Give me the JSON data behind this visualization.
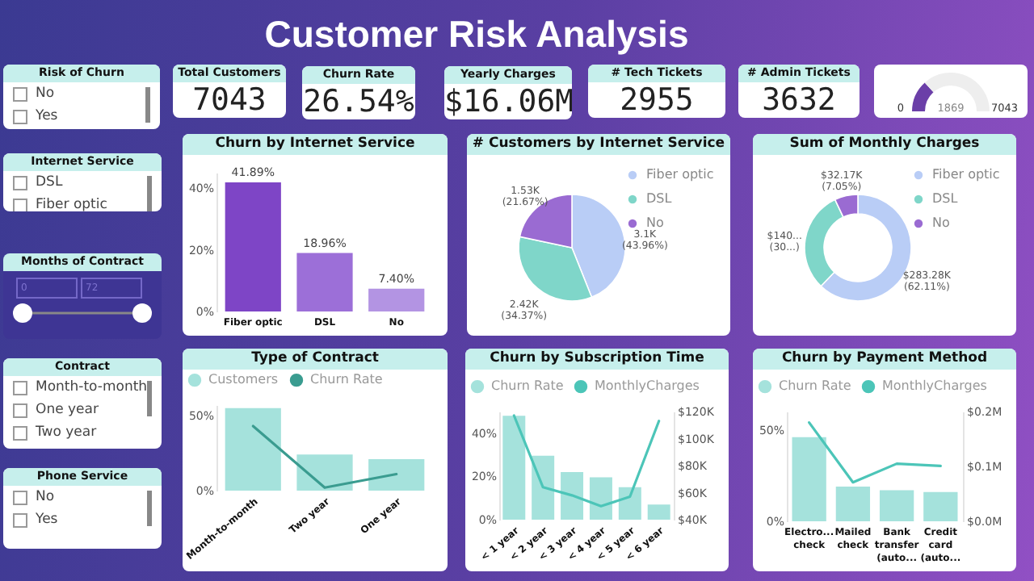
{
  "chart_data": [
    {
      "type": "other",
      "title": "Customer Risk Analysis"
    },
    {
      "type": "other",
      "title": "Risk of Churn",
      "annotations": [
        "No",
        "Yes"
      ]
    },
    {
      "type": "other",
      "title": "Total Customers",
      "annotations": [
        "7043"
      ]
    },
    {
      "type": "other",
      "title": "Churn Rate",
      "annotations": [
        "26.54%"
      ]
    },
    {
      "type": "other",
      "title": "Yearly Charges",
      "annotations": [
        "$16.06M"
      ]
    },
    {
      "type": "other",
      "title": "# Tech Tickets",
      "annotations": [
        "2955"
      ]
    },
    {
      "type": "other",
      "title": "# Admin Tickets",
      "annotations": [
        "3632"
      ]
    },
    {
      "type": "donut",
      "categories": [
        null,
        null
      ],
      "values": [
        26.54,
        73.46
      ],
      "colors": [
        "#6b3fa8",
        "#eeeeee"
      ],
      "annotations": [
        "0",
        "1869",
        "7043"
      ]
    },
    {
      "type": "other",
      "title": "Internet Service",
      "annotations": [
        "DSL",
        "Fiber optic"
      ]
    },
    {
      "type": "bar",
      "title": "Churn by Internet Service",
      "categories": [
        "Fiber optic",
        "DSL",
        "No"
      ],
      "values": [
        41.89,
        18.96,
        7.4
      ],
      "colors": [
        "#7e45c6",
        "#9c6fd8",
        "#b394e3"
      ],
      "value_labels": [
        "41.89%",
        "18.96%",
        "7.40%"
      ],
      "ylim": [
        0,
        45
      ],
      "yticks": [
        {
          "value": 0,
          "label": "0%"
        },
        {
          "value": 20,
          "label": "20%"
        },
        {
          "value": 40,
          "label": "40%"
        }
      ]
    },
    {
      "type": "pie",
      "title": "# Customers by Internet Service",
      "categories": [
        "Fiber optic",
        "DSL",
        "No"
      ],
      "values": [
        43.96,
        34.37,
        21.67
      ],
      "colors": [
        "#b9cdf6",
        "#7fd6c9",
        "#9a6bd2"
      ],
      "value_labels": [
        "3.1K (43.96%)",
        "2.42K (34.37%)",
        "1.53K (21.67%)"
      ],
      "legend": "right"
    },
    {
      "type": "donut",
      "title": "Sum of Monthly Charges",
      "categories": [
        "Fiber optic",
        "DSL",
        "No"
      ],
      "values": [
        283280,
        140000,
        32170
      ],
      "colors": [
        "#b9cdf6",
        "#7fd6c9",
        "#9a6bd2"
      ],
      "value_labels": [
        "$283.28K (62.11%)",
        null,
        "$32.17K (7.05%)"
      ],
      "annotations": [
        "$140... (30...)"
      ],
      "legend": "right"
    },
    {
      "type": "other",
      "title": "Months of Contract",
      "annotations": [
        "0",
        "72"
      ]
    },
    {
      "type": "other",
      "title": "Contract",
      "annotations": [
        "Month-to-month",
        "One year",
        "Two year"
      ]
    },
    {
      "type": "bar",
      "title": "Type of Contract",
      "categories": [
        "Month-to-month",
        "Two year",
        "One year"
      ],
      "legend": "top left",
      "ylim": [
        0,
        57
      ],
      "yticks": [
        {
          "value": 0,
          "label": "0%"
        },
        {
          "value": 50,
          "label": "50%"
        }
      ],
      "series": [
        {
          "name": "Customers",
          "type": "bar",
          "color": "#a5e2dc",
          "values": [
            55,
            24,
            21
          ]
        },
        {
          "name": "Churn Rate",
          "type": "line",
          "color": "#3a9c90",
          "values": [
            43,
            2,
            11
          ]
        }
      ]
    },
    {
      "type": "bar",
      "title": "Churn by Subscription Time",
      "categories": [
        "< 1 year",
        "< 2 year",
        "< 3 year",
        "< 4 year",
        "< 5 year",
        "< 6 year"
      ],
      "legend": "top left",
      "ylim": [
        0,
        50
      ],
      "yticks": [
        {
          "value": 0,
          "label": "0%"
        },
        {
          "value": 20,
          "label": "20%"
        },
        {
          "value": 40,
          "label": "40%"
        }
      ],
      "y2lim": [
        40,
        120
      ],
      "y2ticks": [
        {
          "value": 40,
          "label": "$40K"
        },
        {
          "value": 60,
          "label": "$60K"
        },
        {
          "value": 80,
          "label": "$80K"
        },
        {
          "value": 100,
          "label": "$100K"
        },
        {
          "value": 120,
          "label": "$120K"
        }
      ],
      "series": [
        {
          "name": "Churn Rate",
          "type": "bar",
          "color": "#a5e2dc",
          "values": [
            48,
            29.6,
            22,
            19.6,
            15,
            7
          ]
        },
        {
          "name": "MonthlyCharges",
          "type": "line",
          "axis": "y2",
          "color": "#4cc5b8",
          "values": [
            117,
            64,
            58,
            50,
            57,
            113
          ]
        }
      ]
    },
    {
      "type": "bar",
      "title": "Churn by Payment Method",
      "categories": [
        "Electro... check",
        "Mailed check",
        "Bank transfer (auto...",
        "Credit card (auto..."
      ],
      "legend": "top left",
      "ylim": [
        0,
        60
      ],
      "yticks": [
        {
          "value": 0,
          "label": "0%"
        },
        {
          "value": 50,
          "label": "50%"
        }
      ],
      "y2lim": [
        0,
        0.2
      ],
      "y2ticks": [
        {
          "value": 0,
          "label": "$0.0M"
        },
        {
          "value": 0.1,
          "label": "$0.1M"
        },
        {
          "value": 0.2,
          "label": "$0.2M"
        }
      ],
      "series": [
        {
          "name": "Churn Rate",
          "type": "bar",
          "color": "#a5e2dc",
          "values": [
            46,
            19,
            17,
            16
          ]
        },
        {
          "name": "MonthlyCharges",
          "type": "line",
          "axis": "y2",
          "color": "#4cc5b8",
          "values": [
            0.18,
            0.071,
            0.105,
            0.101
          ]
        }
      ]
    },
    {
      "type": "other",
      "title": "Phone Service",
      "annotations": [
        "No",
        "Yes"
      ]
    }
  ]
}
